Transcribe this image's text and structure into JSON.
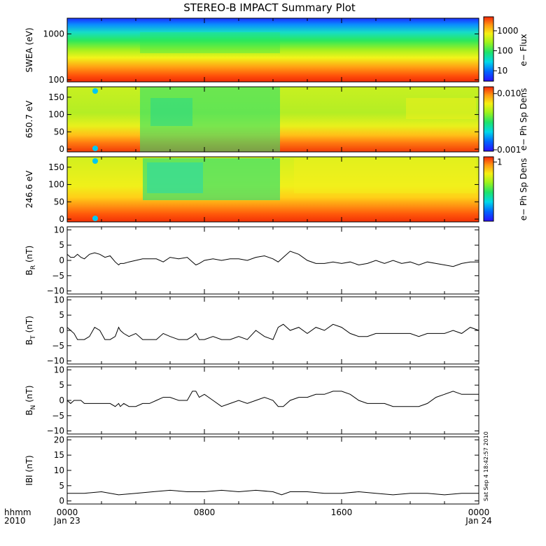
{
  "chart_data": {
    "type": "multi-panel",
    "title": "STEREO-B IMPACT Summary Plot",
    "x_axis": {
      "corner_labels": [
        "hhmm",
        "2010"
      ],
      "ticks": [
        {
          "label": "0000",
          "date": "Jan 23",
          "hour": 0
        },
        {
          "label": "0800",
          "date": "",
          "hour": 8
        },
        {
          "label": "1600",
          "date": "",
          "hour": 16
        },
        {
          "label": "0000",
          "date": "Jan 24",
          "hour": 24
        }
      ],
      "range_hours": [
        0,
        24
      ]
    },
    "side_stamp": "Sat Sep  4 18:42:57 2010",
    "panels": [
      {
        "kind": "spectrogram",
        "ylabel": "SWEA (eV)",
        "yscale": "log",
        "ylim": [
          90,
          2200
        ],
        "yticks": [
          {
            "v": 100,
            "t": "100"
          },
          {
            "v": 1000,
            "t": "1000"
          }
        ],
        "colorbar": {
          "label": "e− Flux",
          "scale": "log",
          "range": [
            3,
            5000
          ],
          "ticks": [
            {
              "v": 10,
              "t": "10"
            },
            {
              "v": 100,
              "t": "100"
            },
            {
              "v": 1000,
              "t": "1000"
            }
          ]
        }
      },
      {
        "kind": "spectrogram",
        "ylabel": "650.7 eV",
        "yscale": "linear",
        "ylim": [
          -8,
          180
        ],
        "yticks": [
          {
            "v": 0,
            "t": "0"
          },
          {
            "v": 50,
            "t": "50"
          },
          {
            "v": 100,
            "t": "100"
          },
          {
            "v": 150,
            "t": "150"
          }
        ],
        "colorbar": {
          "label": "e− Ph Sp Dens",
          "scale": "log",
          "range": [
            0.001,
            0.014
          ],
          "ticks": [
            {
              "v": 0.001,
              "t": "0.001"
            },
            {
              "v": 0.01,
              "t": "0.010"
            }
          ]
        }
      },
      {
        "kind": "spectrogram",
        "ylabel": "246.6 eV",
        "yscale": "linear",
        "ylim": [
          -8,
          180
        ],
        "yticks": [
          {
            "v": 0,
            "t": "0"
          },
          {
            "v": 50,
            "t": "50"
          },
          {
            "v": 100,
            "t": "100"
          },
          {
            "v": 150,
            "t": "150"
          }
        ],
        "colorbar": {
          "label": "e− Ph Sp Dens",
          "scale": "log",
          "range": [
            0.1,
            1.3
          ],
          "ticks": [
            {
              "v": 1,
              "t": "1"
            }
          ]
        }
      },
      {
        "kind": "line",
        "ylabel_main": "B",
        "ylabel_sub": "R",
        "ylabel_unit": " (nT)",
        "ylim": [
          -11,
          11
        ],
        "yticks": [
          {
            "v": -10,
            "t": "−10"
          },
          {
            "v": -5,
            "t": "−5"
          },
          {
            "v": 0,
            "t": "0"
          },
          {
            "v": 5,
            "t": "5"
          },
          {
            "v": 10,
            "t": "10"
          }
        ],
        "series": {
          "x": [
            0,
            0.2,
            0.4,
            0.6,
            0.8,
            1,
            1.3,
            1.6,
            1.9,
            2.2,
            2.5,
            2.8,
            3,
            3.1,
            3.3,
            3.6,
            4,
            4.4,
            4.8,
            5.2,
            5.6,
            6,
            6.5,
            7,
            7.3,
            7.5,
            7.7,
            8,
            8.5,
            9,
            9.5,
            10,
            10.5,
            11,
            11.5,
            12,
            12.3,
            12.6,
            13,
            13.5,
            14,
            14.5,
            15,
            15.5,
            16,
            16.5,
            17,
            17.5,
            18,
            18.5,
            19,
            19.5,
            20,
            20.5,
            21,
            21.5,
            22,
            22.5,
            23,
            23.5,
            24
          ],
          "values": [
            2,
            1,
            1,
            2,
            1,
            0.5,
            2,
            2.5,
            2,
            1,
            1.5,
            -0.5,
            -1.5,
            -1,
            -1,
            -0.5,
            0,
            0.5,
            0.5,
            0.5,
            -0.5,
            1,
            0.5,
            1,
            -0.5,
            -1.5,
            -1,
            0,
            0.5,
            0,
            0.5,
            0.5,
            0,
            1,
            1.5,
            0.5,
            -0.5,
            1,
            3,
            2,
            0,
            -1,
            -1,
            -0.5,
            -1,
            -0.5,
            -1.5,
            -1,
            0,
            -1,
            0,
            -1,
            -0.5,
            -1.5,
            -0.5,
            -1,
            -1.5,
            -2,
            -1,
            -0.5,
            -0.5
          ]
        }
      },
      {
        "kind": "line",
        "ylabel_main": "B",
        "ylabel_sub": "T",
        "ylabel_unit": " (nT)",
        "ylim": [
          -11,
          11
        ],
        "yticks": [
          {
            "v": -10,
            "t": "−10"
          },
          {
            "v": -5,
            "t": "−5"
          },
          {
            "v": 0,
            "t": "0"
          },
          {
            "v": 5,
            "t": "5"
          },
          {
            "v": 10,
            "t": "10"
          }
        ],
        "series": {
          "x": [
            0,
            0.2,
            0.4,
            0.6,
            0.8,
            1,
            1.3,
            1.6,
            1.9,
            2.2,
            2.5,
            2.8,
            3,
            3.1,
            3.3,
            3.6,
            4,
            4.4,
            4.8,
            5.2,
            5.6,
            6,
            6.5,
            7,
            7.3,
            7.5,
            7.7,
            8,
            8.5,
            9,
            9.5,
            10,
            10.5,
            11,
            11.5,
            12,
            12.3,
            12.6,
            13,
            13.5,
            14,
            14.5,
            15,
            15.5,
            16,
            16.5,
            17,
            17.5,
            18,
            18.5,
            19,
            19.5,
            20,
            20.5,
            21,
            21.5,
            22,
            22.5,
            23,
            23.5,
            24
          ],
          "values": [
            1,
            0,
            -1,
            -3,
            -3,
            -3,
            -2,
            1,
            0,
            -3,
            -3,
            -2,
            1,
            0,
            -1,
            -2,
            -1,
            -3,
            -3,
            -3,
            -1,
            -2,
            -3,
            -3,
            -2,
            -1,
            -3,
            -3,
            -2,
            -3,
            -3,
            -2,
            -3,
            0,
            -2,
            -3,
            1,
            2,
            0,
            1,
            -1,
            1,
            0,
            2,
            1,
            -1,
            -2,
            -2,
            -1,
            -1,
            -1,
            -1,
            -1,
            -2,
            -1,
            -1,
            -1,
            0,
            -1,
            1,
            0
          ]
        }
      },
      {
        "kind": "line",
        "ylabel_main": "B",
        "ylabel_sub": "N",
        "ylabel_unit": " (nT)",
        "ylim": [
          -11,
          11
        ],
        "yticks": [
          {
            "v": -10,
            "t": "−10"
          },
          {
            "v": -5,
            "t": "−5"
          },
          {
            "v": 0,
            "t": "0"
          },
          {
            "v": 5,
            "t": "5"
          },
          {
            "v": 10,
            "t": "10"
          }
        ],
        "series": {
          "x": [
            0,
            0.2,
            0.4,
            0.6,
            0.8,
            1,
            1.3,
            1.6,
            1.9,
            2.2,
            2.5,
            2.8,
            3,
            3.1,
            3.3,
            3.6,
            4,
            4.4,
            4.8,
            5.2,
            5.6,
            6,
            6.5,
            7,
            7.3,
            7.5,
            7.7,
            8,
            8.5,
            9,
            9.5,
            10,
            10.5,
            11,
            11.5,
            12,
            12.3,
            12.6,
            13,
            13.5,
            14,
            14.5,
            15,
            15.5,
            16,
            16.5,
            17,
            17.5,
            18,
            18.5,
            19,
            19.5,
            20,
            20.5,
            21,
            21.5,
            22,
            22.5,
            23,
            23.5,
            24
          ],
          "values": [
            0,
            -1,
            0,
            0,
            0,
            -1,
            -1,
            -1,
            -1,
            -1,
            -1,
            -2,
            -1,
            -2,
            -1,
            -2,
            -2,
            -1,
            -1,
            0,
            1,
            1,
            0,
            0,
            3,
            3,
            1,
            2,
            0,
            -2,
            -1,
            0,
            -1,
            0,
            1,
            0,
            -2,
            -2,
            0,
            1,
            1,
            2,
            2,
            3,
            3,
            2,
            0,
            -1,
            -1,
            -1,
            -2,
            -2,
            -2,
            -2,
            -1,
            1,
            2,
            3,
            2,
            2,
            2
          ]
        }
      },
      {
        "kind": "line",
        "ylabel_main": "IBI",
        "ylabel_sub": "",
        "ylabel_unit": " (nT)",
        "ylim": [
          -1,
          21
        ],
        "yticks": [
          {
            "v": 0,
            "t": "0"
          },
          {
            "v": 5,
            "t": "5"
          },
          {
            "v": 10,
            "t": "10"
          },
          {
            "v": 15,
            "t": "15"
          },
          {
            "v": 20,
            "t": "20"
          }
        ],
        "series": {
          "x": [
            0,
            1,
            2,
            3,
            4,
            5,
            6,
            7,
            8,
            9,
            10,
            11,
            12,
            12.5,
            13,
            14,
            15,
            16,
            17,
            18,
            19,
            20,
            21,
            22,
            23,
            24
          ],
          "values": [
            2.5,
            2.5,
            3,
            2,
            2.5,
            3,
            3.5,
            3,
            3,
            3.5,
            3,
            3.5,
            3,
            2,
            3,
            3,
            2.5,
            2.5,
            3,
            2.5,
            2,
            2.5,
            2.5,
            2,
            2.5,
            2.5
          ]
        }
      }
    ]
  }
}
